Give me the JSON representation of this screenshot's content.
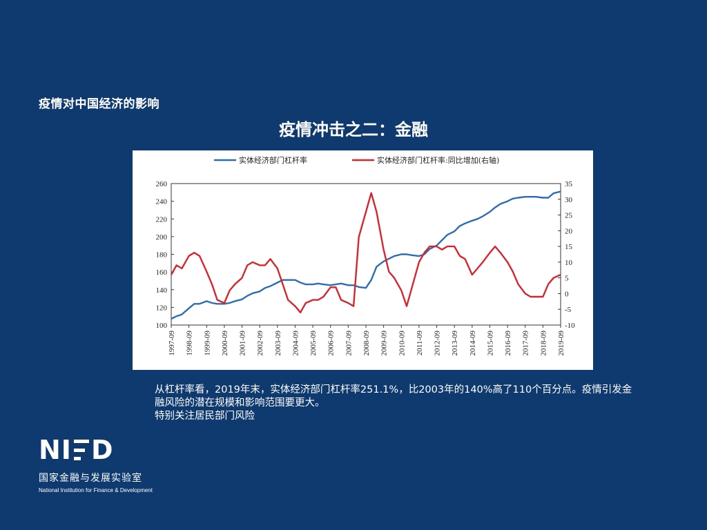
{
  "slide": {
    "heading": "疫情对中国经济的影响",
    "title": "疫情冲击之二：金融"
  },
  "body": {
    "paragraph1": "从杠杆率看，2019年末，实体经济部门杠杆率251.1%，比2003年的140%高了110个百分点。疫情引发金融风险的潜在规模和影响范围要更大。",
    "paragraph2": "特别关注居民部门风险"
  },
  "logo": {
    "mark_left": "NI",
    "mark_right": "D",
    "name_cn": "国家金融与发展实验室",
    "name_en": "National Institution for Finance & Development"
  },
  "chart_data": {
    "type": "line",
    "title": "",
    "legend_position": "top",
    "x_labels": [
      "1997-09",
      "1998-09",
      "1999-09",
      "2000-09",
      "2001-09",
      "2002-09",
      "2003-09",
      "2004-09",
      "2005-09",
      "2006-09",
      "2007-09",
      "2008-09",
      "2009-09",
      "2010-09",
      "2011-09",
      "2012-09",
      "2013-09",
      "2014-09",
      "2015-09",
      "2016-09",
      "2017-09",
      "2018-09",
      "2019-09"
    ],
    "y_left": {
      "min": 100,
      "max": 260,
      "ticks": [
        100,
        120,
        140,
        160,
        180,
        200,
        220,
        240,
        260
      ]
    },
    "y_right": {
      "min": -10,
      "max": 35,
      "ticks": [
        -10,
        -5,
        0,
        5,
        10,
        15,
        20,
        25,
        30,
        35
      ]
    },
    "series": [
      {
        "name": "实体经济部门杠杆率",
        "color": "#2a6db5",
        "axis": "left",
        "x": [
          1997.7,
          1998.0,
          1998.3,
          1998.7,
          1999.0,
          1999.3,
          1999.7,
          2000.0,
          2000.3,
          2000.7,
          2001.0,
          2001.3,
          2001.7,
          2002.0,
          2002.3,
          2002.7,
          2003.0,
          2003.3,
          2003.7,
          2004.0,
          2004.3,
          2004.7,
          2005.0,
          2005.3,
          2005.7,
          2006.0,
          2006.3,
          2006.7,
          2007.0,
          2007.3,
          2007.7,
          2008.0,
          2008.3,
          2008.7,
          2009.0,
          2009.3,
          2009.7,
          2010.0,
          2010.3,
          2010.7,
          2011.0,
          2011.3,
          2011.7,
          2012.0,
          2012.3,
          2012.7,
          2013.0,
          2013.3,
          2013.7,
          2014.0,
          2014.3,
          2014.7,
          2015.0,
          2015.3,
          2015.7,
          2016.0,
          2016.3,
          2016.7,
          2017.0,
          2017.3,
          2017.7,
          2018.0,
          2018.3,
          2018.7,
          2019.0,
          2019.3,
          2019.7
        ],
        "values": [
          107,
          110,
          112,
          119,
          124,
          124,
          127,
          125,
          124,
          124,
          125,
          127,
          129,
          133,
          136,
          138,
          142,
          144,
          148,
          151,
          151,
          151,
          148,
          146,
          146,
          147,
          146,
          145,
          146,
          147,
          145,
          145,
          143,
          142,
          151,
          166,
          172,
          175,
          178,
          180,
          180,
          179,
          178,
          180,
          186,
          190,
          196,
          202,
          206,
          212,
          215,
          218,
          220,
          223,
          228,
          233,
          237,
          240,
          243,
          244,
          245,
          245,
          245,
          244,
          244,
          249,
          251
        ]
      },
      {
        "name": "实体经济部门杠杆率:同比增加(右轴)",
        "color": "#d7262b",
        "axis": "right",
        "x": [
          1997.7,
          1998.0,
          1998.3,
          1998.7,
          1999.0,
          1999.3,
          1999.7,
          2000.0,
          2000.3,
          2000.7,
          2001.0,
          2001.3,
          2001.7,
          2002.0,
          2002.3,
          2002.7,
          2003.0,
          2003.3,
          2003.7,
          2004.0,
          2004.3,
          2004.7,
          2005.0,
          2005.3,
          2005.7,
          2006.0,
          2006.3,
          2006.7,
          2007.0,
          2007.3,
          2007.7,
          2008.0,
          2008.3,
          2008.7,
          2009.0,
          2009.3,
          2009.7,
          2010.0,
          2010.3,
          2010.7,
          2011.0,
          2011.3,
          2011.7,
          2012.0,
          2012.3,
          2012.7,
          2013.0,
          2013.3,
          2013.7,
          2014.0,
          2014.3,
          2014.7,
          2015.0,
          2015.3,
          2015.7,
          2016.0,
          2016.3,
          2016.7,
          2017.0,
          2017.3,
          2017.7,
          2018.0,
          2018.3,
          2018.7,
          2019.0,
          2019.3,
          2019.7
        ],
        "values": [
          6,
          9,
          8,
          12,
          13,
          12,
          7,
          3,
          -2,
          -3,
          1,
          3,
          5,
          9,
          10,
          9,
          9,
          11,
          8,
          3,
          -2,
          -4,
          -6,
          -3,
          -2,
          -2,
          -1,
          2,
          2,
          -2,
          -3,
          -4,
          18,
          26,
          32,
          26,
          14,
          7,
          5,
          1,
          -4,
          2,
          10,
          13,
          15,
          15,
          14,
          15,
          15,
          12,
          11,
          6,
          8,
          10,
          13,
          15,
          13,
          10,
          7,
          3,
          0,
          -1,
          -1,
          -1,
          3,
          5,
          6
        ]
      }
    ]
  }
}
